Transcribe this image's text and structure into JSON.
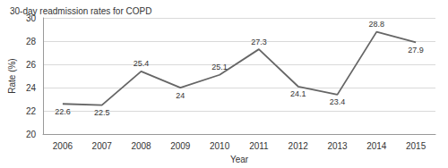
{
  "chart_data": {
    "type": "line",
    "title": "30-day readmission rates for COPD",
    "xlabel": "Year",
    "ylabel": "Rate (%)",
    "categories": [
      "2006",
      "2007",
      "2008",
      "2009",
      "2010",
      "2011",
      "2012",
      "2013",
      "2014",
      "2015"
    ],
    "values": [
      22.6,
      22.5,
      25.4,
      24,
      25.1,
      27.3,
      24.1,
      23.4,
      28.8,
      27.9
    ],
    "color": "#666666",
    "ylim": [
      20,
      30
    ],
    "yticks": [
      20,
      22,
      24,
      26,
      28,
      30
    ],
    "grid": true,
    "data_labels": true
  }
}
